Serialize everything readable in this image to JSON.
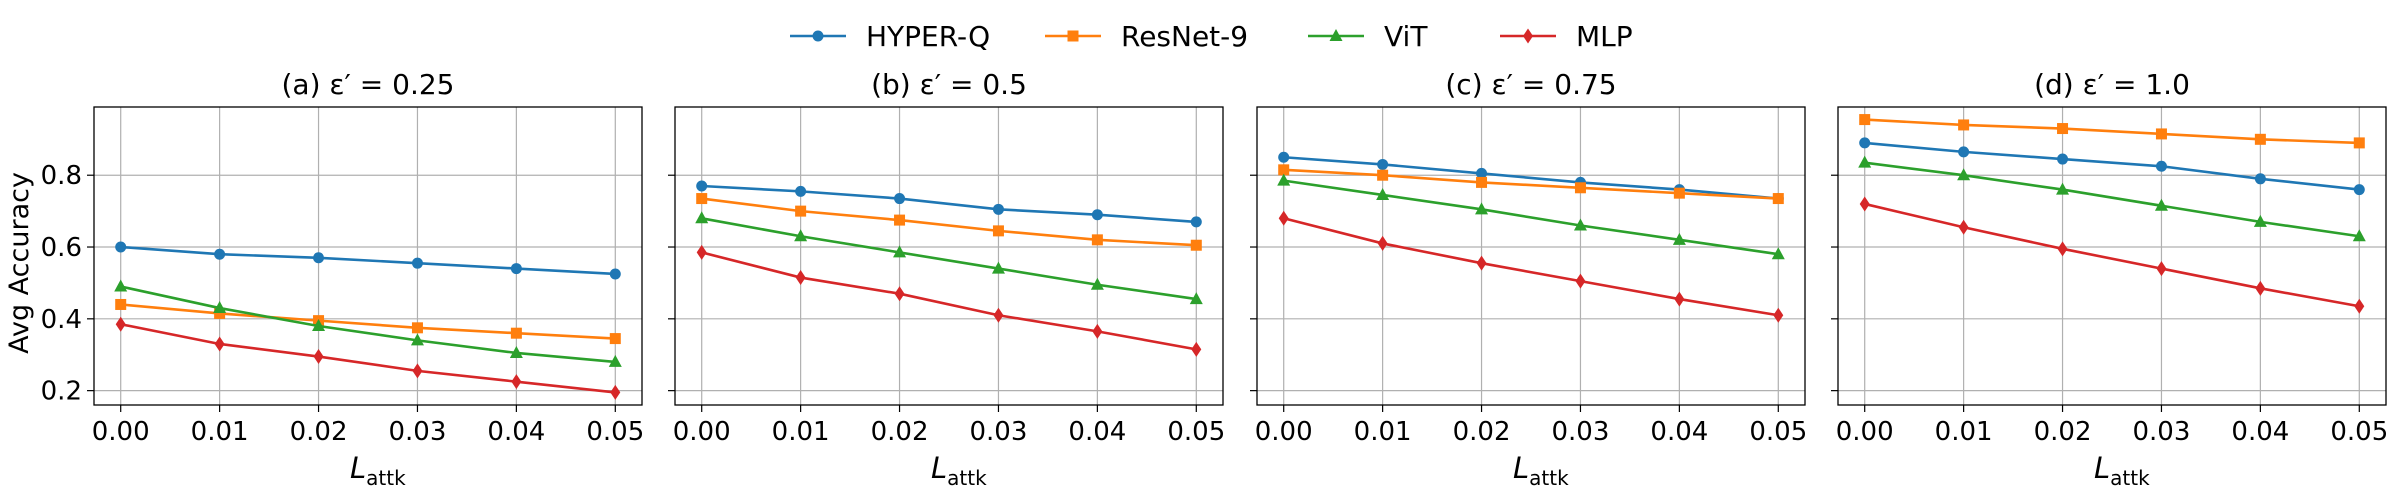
{
  "figure": {
    "ylabel": "Avg Accuracy",
    "xlabel_main": "L",
    "xlabel_sub": "attk"
  },
  "legend": {
    "placement": "top-center",
    "entries": [
      {
        "name": "HYPER-Q",
        "color": "#1f77b4",
        "marker": "circle"
      },
      {
        "name": "ResNet-9",
        "color": "#ff7f0e",
        "marker": "square"
      },
      {
        "name": "ViT",
        "color": "#2ca02c",
        "marker": "triangle"
      },
      {
        "name": "MLP",
        "color": "#d62728",
        "marker": "diamond"
      }
    ]
  },
  "chart_data": [
    {
      "type": "line",
      "title": "(a) ε′ = 0.25",
      "xlabel": "L_attk",
      "ylabel": "Avg Accuracy",
      "x": [
        0.0,
        0.01,
        0.02,
        0.03,
        0.04,
        0.05
      ],
      "x_tick_labels": [
        "0.00",
        "0.01",
        "0.02",
        "0.03",
        "0.04",
        "0.05"
      ],
      "y_ticks": [
        0.2,
        0.4,
        0.6,
        0.8
      ],
      "y_tick_labels": [
        "0.2",
        "0.4",
        "0.6",
        "0.8"
      ],
      "xlim": [
        -0.0027,
        0.0527
      ],
      "ylim": [
        0.16,
        0.99
      ],
      "grid": true,
      "series": [
        {
          "name": "HYPER-Q",
          "values": [
            0.6,
            0.58,
            0.57,
            0.555,
            0.54,
            0.525
          ]
        },
        {
          "name": "ResNet-9",
          "values": [
            0.44,
            0.415,
            0.395,
            0.375,
            0.36,
            0.345
          ]
        },
        {
          "name": "ViT",
          "values": [
            0.49,
            0.43,
            0.38,
            0.34,
            0.305,
            0.28
          ]
        },
        {
          "name": "MLP",
          "values": [
            0.385,
            0.33,
            0.295,
            0.255,
            0.225,
            0.195
          ]
        }
      ]
    },
    {
      "type": "line",
      "title": "(b) ε′ = 0.5",
      "xlabel": "L_attk",
      "ylabel": "Avg Accuracy",
      "x": [
        0.0,
        0.01,
        0.02,
        0.03,
        0.04,
        0.05
      ],
      "x_tick_labels": [
        "0.00",
        "0.01",
        "0.02",
        "0.03",
        "0.04",
        "0.05"
      ],
      "y_ticks": [
        0.2,
        0.4,
        0.6,
        0.8
      ],
      "y_tick_labels": [
        "0.2",
        "0.4",
        "0.6",
        "0.8"
      ],
      "xlim": [
        -0.0027,
        0.0527
      ],
      "ylim": [
        0.16,
        0.99
      ],
      "grid": true,
      "series": [
        {
          "name": "HYPER-Q",
          "values": [
            0.77,
            0.755,
            0.735,
            0.705,
            0.69,
            0.67
          ]
        },
        {
          "name": "ResNet-9",
          "values": [
            0.735,
            0.7,
            0.675,
            0.645,
            0.62,
            0.605
          ]
        },
        {
          "name": "ViT",
          "values": [
            0.68,
            0.63,
            0.585,
            0.54,
            0.495,
            0.455
          ]
        },
        {
          "name": "MLP",
          "values": [
            0.585,
            0.515,
            0.47,
            0.41,
            0.365,
            0.315
          ]
        }
      ]
    },
    {
      "type": "line",
      "title": "(c) ε′ = 0.75",
      "xlabel": "L_attk",
      "ylabel": "Avg Accuracy",
      "x": [
        0.0,
        0.01,
        0.02,
        0.03,
        0.04,
        0.05
      ],
      "x_tick_labels": [
        "0.00",
        "0.01",
        "0.02",
        "0.03",
        "0.04",
        "0.05"
      ],
      "y_ticks": [
        0.2,
        0.4,
        0.6,
        0.8
      ],
      "y_tick_labels": [
        "0.2",
        "0.4",
        "0.6",
        "0.8"
      ],
      "xlim": [
        -0.0027,
        0.0527
      ],
      "ylim": [
        0.16,
        0.99
      ],
      "grid": true,
      "series": [
        {
          "name": "HYPER-Q",
          "values": [
            0.85,
            0.83,
            0.805,
            0.78,
            0.76,
            0.735
          ]
        },
        {
          "name": "ResNet-9",
          "values": [
            0.815,
            0.8,
            0.78,
            0.765,
            0.75,
            0.735
          ]
        },
        {
          "name": "ViT",
          "values": [
            0.785,
            0.745,
            0.705,
            0.66,
            0.62,
            0.58
          ]
        },
        {
          "name": "MLP",
          "values": [
            0.68,
            0.61,
            0.555,
            0.505,
            0.455,
            0.41
          ]
        }
      ]
    },
    {
      "type": "line",
      "title": "(d) ε′ = 1.0",
      "xlabel": "L_attk",
      "ylabel": "Avg Accuracy",
      "x": [
        0.0,
        0.01,
        0.02,
        0.03,
        0.04,
        0.05
      ],
      "x_tick_labels": [
        "0.00",
        "0.01",
        "0.02",
        "0.03",
        "0.04",
        "0.05"
      ],
      "y_ticks": [
        0.2,
        0.4,
        0.6,
        0.8
      ],
      "y_tick_labels": [
        "0.2",
        "0.4",
        "0.6",
        "0.8"
      ],
      "xlim": [
        -0.0027,
        0.0527
      ],
      "ylim": [
        0.16,
        0.99
      ],
      "grid": true,
      "series": [
        {
          "name": "HYPER-Q",
          "values": [
            0.89,
            0.865,
            0.845,
            0.825,
            0.79,
            0.76
          ]
        },
        {
          "name": "ResNet-9",
          "values": [
            0.955,
            0.94,
            0.93,
            0.915,
            0.9,
            0.89
          ]
        },
        {
          "name": "ViT",
          "values": [
            0.835,
            0.8,
            0.76,
            0.715,
            0.67,
            0.63
          ]
        },
        {
          "name": "MLP",
          "values": [
            0.72,
            0.655,
            0.595,
            0.54,
            0.485,
            0.435
          ]
        }
      ]
    }
  ]
}
